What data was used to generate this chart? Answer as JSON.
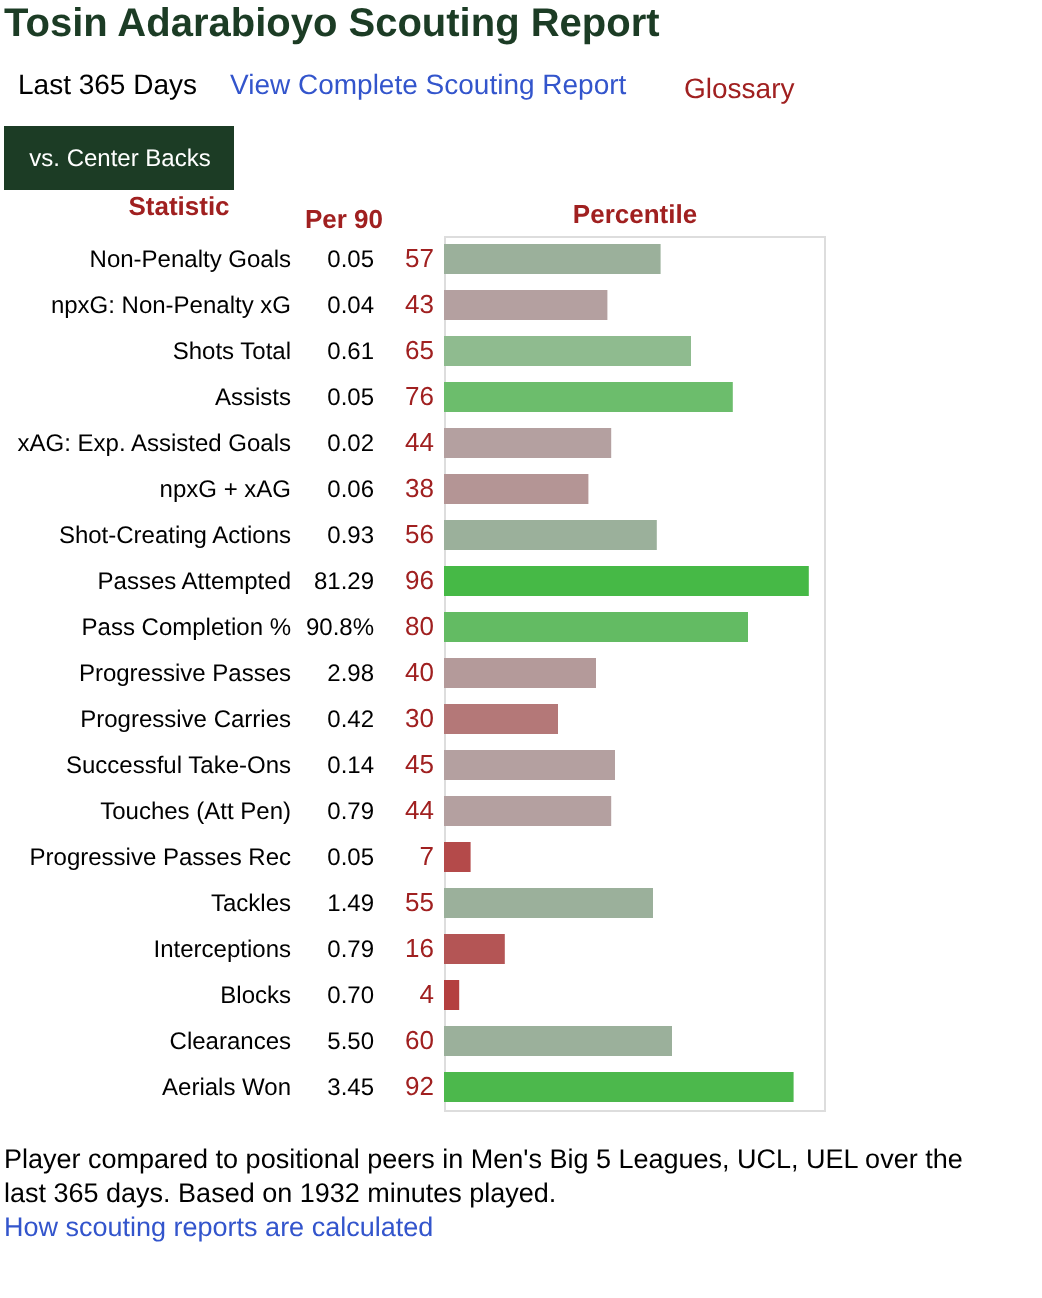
{
  "chart_data": {
    "type": "bar",
    "orientation": "horizontal",
    "title": "Tosin Adarabioyo Scouting Report",
    "subtitle": "Last 365 Days",
    "xlabel": "Percentile",
    "ylabel": "Statistic",
    "categories": [
      "Non-Penalty Goals",
      "npxG: Non-Penalty xG",
      "Shots Total",
      "Assists",
      "xAG: Exp. Assisted Goals",
      "npxG + xAG",
      "Shot-Creating Actions",
      "Passes Attempted",
      "Pass Completion %",
      "Progressive Passes",
      "Progressive Carries",
      "Successful Take-Ons",
      "Touches (Att Pen)",
      "Progressive Passes Rec",
      "Tackles",
      "Interceptions",
      "Blocks",
      "Clearances",
      "Aerials Won"
    ],
    "values": [
      57,
      43,
      65,
      76,
      44,
      38,
      56,
      96,
      80,
      40,
      30,
      45,
      44,
      7,
      55,
      16,
      4,
      60,
      92
    ],
    "colors": [
      "#9bb09b",
      "#b4a0a0",
      "#8fbb8f",
      "#6cbd6c",
      "#b4a0a0",
      "#b49595",
      "#9bb09b",
      "#46b946",
      "#63bb63",
      "#b49a9a",
      "#b47878",
      "#b4a0a0",
      "#b4a0a0",
      "#b44a4a",
      "#9bb09b",
      "#b45555",
      "#b44040",
      "#9bb09b",
      "#4cb84c"
    ],
    "xlim": [
      0,
      100
    ],
    "tick_labels": "y",
    "data_labels": true,
    "grid": false,
    "annotations": [
      "View Complete Scouting Report",
      "Glossary",
      "vs. Center Backs",
      "Per 90",
      "0.05",
      "0.04",
      "0.61",
      "0.05",
      "0.02",
      "0.06",
      "0.93",
      "81.29",
      "90.8%",
      "2.98",
      "0.42",
      "0.14",
      "0.79",
      "0.05",
      "1.49",
      "0.79",
      "0.70",
      "5.50",
      "3.45",
      "Player compared to positional peers in Men's Big 5 Leagues, UCL, UEL over the last 365 days. Based on 1932 minutes played.",
      "How scouting reports are calculated"
    ]
  }
}
